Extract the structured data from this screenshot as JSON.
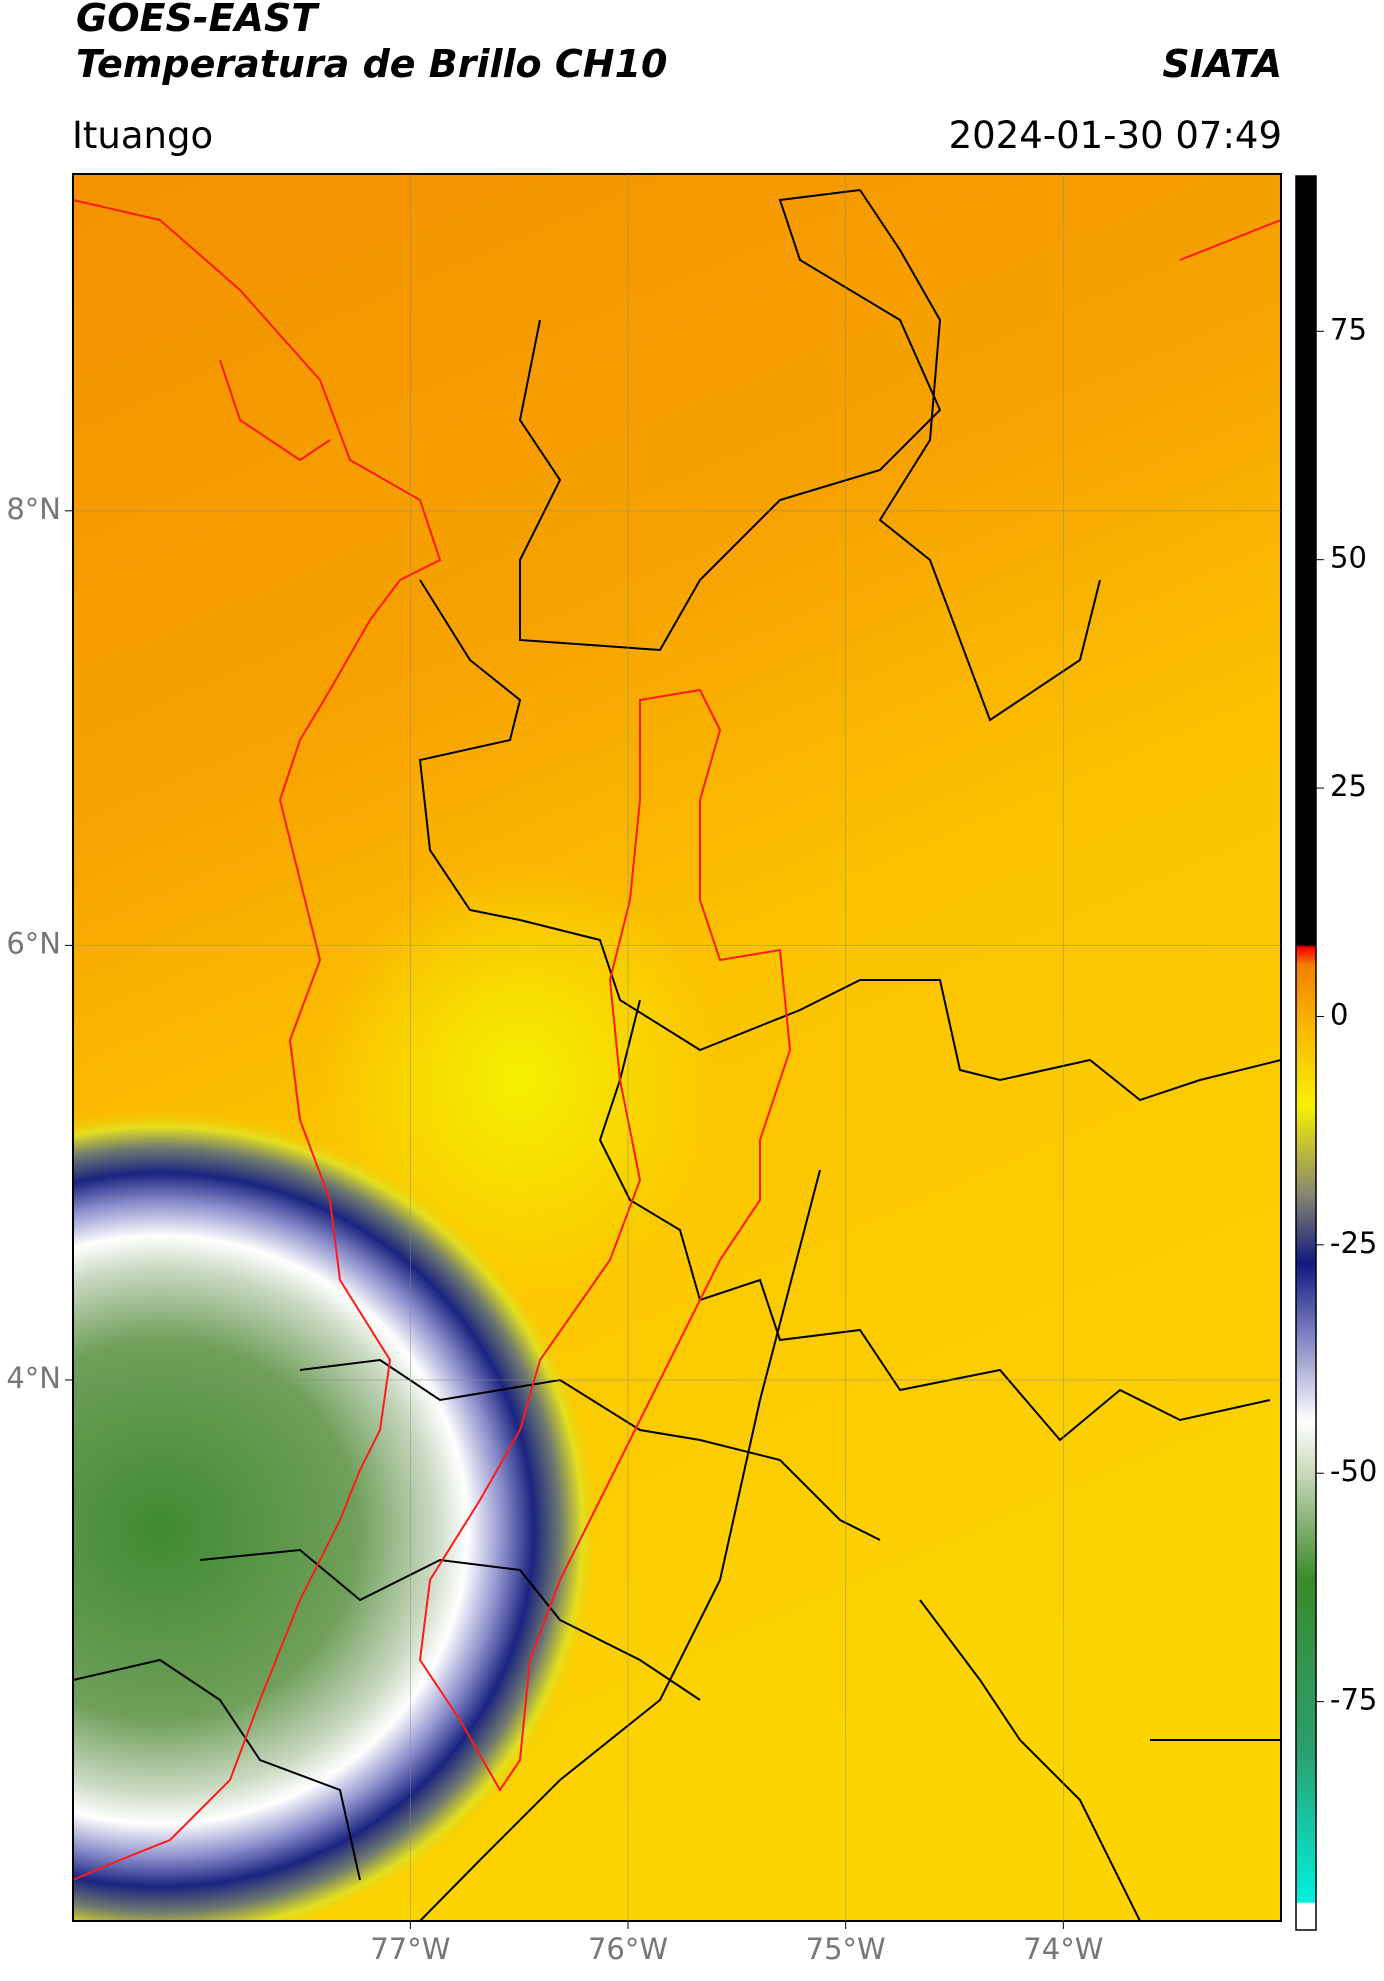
{
  "header": {
    "title_line1": "GOES-EAST",
    "title_line2": "Temperatura de Brillo CH10",
    "source": "SIATA",
    "location": "Ituango",
    "timestamp": "2024-01-30 07:49"
  },
  "map": {
    "xlim": [
      -78.55,
      -73.0
    ],
    "ylim": [
      1.51,
      9.55
    ],
    "xticks": [
      {
        "value": -77,
        "label": "77°W"
      },
      {
        "value": -76,
        "label": "76°W"
      },
      {
        "value": -75,
        "label": "75°W"
      },
      {
        "value": -74,
        "label": "74°W"
      }
    ],
    "yticks": [
      {
        "value": 4,
        "label": "4°N"
      },
      {
        "value": 6,
        "label": "6°N"
      },
      {
        "value": 8,
        "label": "8°N"
      }
    ],
    "grid": true
  },
  "colorbar": {
    "lim": [
      -100,
      92
    ],
    "ticks": [
      -75,
      -50,
      -25,
      0,
      25,
      50,
      75
    ]
  }
}
